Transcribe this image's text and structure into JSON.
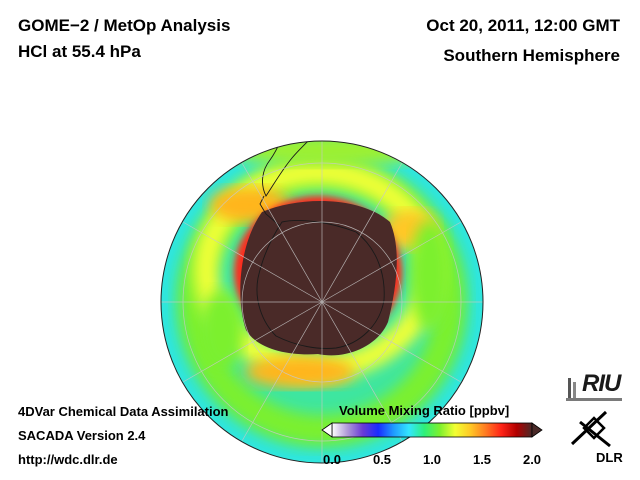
{
  "header": {
    "title_line1": "GOME−2 / MetOp Analysis",
    "title_line2": "HCl at 55.4 hPa",
    "date": "Oct 20, 2011, 12:00 GMT",
    "region": "Southern Hemisphere"
  },
  "footer": {
    "line1": "4DVar Chemical Data Assimilation",
    "line2": "SACADA Version 2.4",
    "line3": "http://wdc.dlr.de"
  },
  "colorbar": {
    "title": "Volume Mixing Ratio [ppbv]",
    "ticks": [
      "0.0",
      "0.5",
      "1.0",
      "1.5",
      "2.0"
    ],
    "range": [
      0.0,
      2.0
    ],
    "colors": [
      "#ffffff",
      "#b09ad8",
      "#6a3ad6",
      "#1a2cff",
      "#1f9bff",
      "#33e6ff",
      "#2ef07a",
      "#7cf02e",
      "#f2ff33",
      "#ffc826",
      "#ff7a22",
      "#ff2418",
      "#b30000",
      "#4a2a28"
    ]
  },
  "logos": {
    "riu": "RIU",
    "dlr": "DLR"
  },
  "map": {
    "projection": "orthographic, centered on South Pole",
    "grid_meridians_deg": 30,
    "grid_parallels_deg": [
      -30,
      -60
    ]
  }
}
